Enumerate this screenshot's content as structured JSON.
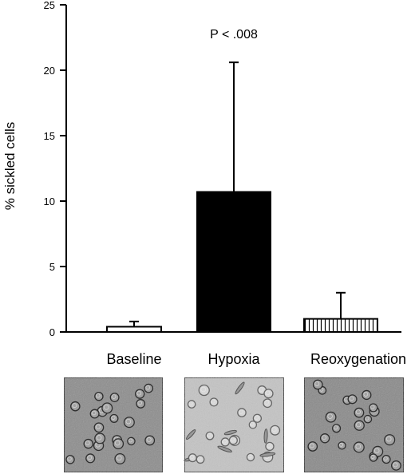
{
  "chart_data": {
    "type": "bar",
    "title": "",
    "xlabel": "",
    "ylabel": "% sickled cells",
    "ylim": [
      0,
      25
    ],
    "yticks": [
      0,
      5,
      10,
      15,
      20,
      25
    ],
    "categories": [
      "Baseline",
      "Hypoxia",
      "Reoxygenation"
    ],
    "values": [
      0.4,
      10.7,
      1.0
    ],
    "errors": [
      0.4,
      9.9,
      2.0
    ],
    "bar_fills": [
      "white",
      "solid-black",
      "vertical-hatch"
    ],
    "annotation": "P < .008",
    "grid": false,
    "legend": "none",
    "images": [
      {
        "name": "baseline-micrograph",
        "tone": "#8d8d8d"
      },
      {
        "name": "hypoxia-micrograph",
        "tone": "#c4c4c4"
      },
      {
        "name": "reoxygenation-micrograph",
        "tone": "#8a8a8a"
      }
    ]
  }
}
